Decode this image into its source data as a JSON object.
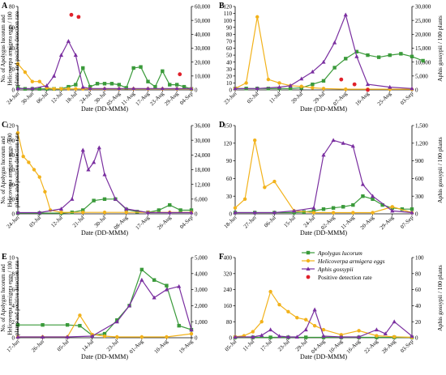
{
  "figure": {
    "left_axis_label": [
      "No. of Apolygus lucorum and",
      "Helicoverpa armigera eggs / 100",
      "plants and positive detection rate"
    ],
    "right_axis_label": "Aphis gossypii / 100 plants",
    "x_axis_label": "Date (DD-MMM)",
    "legend": [
      {
        "name": "Apolygus lucorum",
        "color": "#3a9a3a",
        "marker": "square"
      },
      {
        "name": "Helicoverpa armigera eggs",
        "color": "#f2b21b",
        "marker": "circle"
      },
      {
        "name": "Aphis gossypii",
        "color": "#7a2fa0",
        "marker": "triangle"
      },
      {
        "name": "Positive detection rate",
        "color": "#e0202a",
        "marker": "dot"
      }
    ],
    "colors": {
      "apolygus": "#3a9a3a",
      "helicoverpa": "#f2b21b",
      "aphis": "#7a2fa0",
      "detection": "#e0202a"
    }
  },
  "chart_data": [
    {
      "panel": "A",
      "type": "line",
      "x": [
        "24-Jun",
        "30-Jun",
        "06-Jul",
        "12-Jul",
        "18-Jul",
        "24-Jul",
        "30-Jul",
        "05-Aug",
        "11-Aug",
        "17-Aug",
        "23-Aug",
        "29-Aug",
        "04-Sep"
      ],
      "ylim_left": [
        0,
        80
      ],
      "yticks_left": [
        0,
        20,
        40,
        60,
        80
      ],
      "ylim_right": [
        0,
        60000
      ],
      "yticks_right": [
        0,
        10000,
        20000,
        30000,
        40000,
        50000,
        60000
      ],
      "series": [
        {
          "name": "Apolygus lucorum",
          "axis": "left",
          "x": [
            0,
            0.5,
            1,
            1.5,
            2,
            2.5,
            3,
            3.5,
            4,
            4.5,
            5,
            5.5,
            6,
            6.5,
            7,
            7.5,
            8,
            8.5,
            9,
            9.5,
            10,
            10.5,
            11,
            11.5,
            12
          ],
          "values": [
            2,
            1,
            1,
            1,
            1,
            1,
            1,
            3,
            5,
            21,
            3,
            6,
            6,
            6,
            5,
            2,
            21,
            22,
            8,
            3,
            18,
            5,
            5,
            3,
            1
          ]
        },
        {
          "name": "Helicoverpa armigera eggs",
          "axis": "left",
          "x": [
            0,
            0.5,
            1,
            1.5,
            2,
            2.5,
            3,
            3.5,
            4,
            4.5,
            5,
            6,
            7,
            8,
            9,
            10,
            11,
            12
          ],
          "values": [
            25,
            17,
            8,
            8,
            2,
            1,
            1,
            1,
            1,
            1,
            1,
            1,
            1,
            1,
            1,
            1,
            1,
            1
          ]
        },
        {
          "name": "Aphis gossypii",
          "axis": "right",
          "x": [
            0,
            1,
            2,
            2.5,
            3,
            3.5,
            4,
            4.5,
            5,
            6,
            7,
            8,
            9,
            10,
            11,
            12
          ],
          "values": [
            1000,
            1000,
            3000,
            10000,
            25000,
            35000,
            25000,
            2000,
            1000,
            1000,
            1000,
            1000,
            1000,
            1000,
            1000,
            1000
          ]
        },
        {
          "name": "Positive detection rate",
          "axis": "left",
          "x": [
            3.7,
            4.2,
            11.2
          ],
          "values": [
            72,
            70,
            15
          ]
        }
      ]
    },
    {
      "panel": "B",
      "type": "line",
      "x": [
        "23-Jun",
        "02-Jul",
        "11-Jul",
        "20-Jul",
        "29-Jul",
        "07-Aug",
        "16-Aug",
        "25-Aug",
        "03-Sep"
      ],
      "ylim_left": [
        0,
        120
      ],
      "yticks_left": [
        0,
        10,
        20,
        30,
        40,
        50,
        60,
        70,
        80,
        90,
        100,
        110,
        120
      ],
      "ylim_right": [
        0,
        30000
      ],
      "yticks_right": [
        0,
        5000,
        10000,
        15000,
        20000,
        25000,
        30000
      ],
      "series": [
        {
          "name": "Apolygus lucorum",
          "axis": "left",
          "x": [
            0,
            0.5,
            1,
            1.5,
            2,
            2.5,
            3,
            3.5,
            4,
            4.5,
            5,
            5.5,
            6,
            6.5,
            7,
            7.5,
            8,
            8.5
          ],
          "values": [
            2,
            2,
            2,
            2,
            2,
            2,
            3,
            8,
            13,
            32,
            45,
            55,
            50,
            47,
            50,
            52,
            48,
            42
          ]
        },
        {
          "name": "Helicoverpa armigera eggs",
          "axis": "left",
          "x": [
            0,
            0.5,
            1,
            1.5,
            2,
            2.5,
            3,
            3.5,
            4,
            5,
            6,
            7,
            8
          ],
          "values": [
            2,
            10,
            105,
            15,
            10,
            6,
            5,
            3,
            2,
            1,
            1,
            1,
            1
          ]
        },
        {
          "name": "Aphis gossypii",
          "axis": "right",
          "x": [
            0,
            1,
            2,
            2.5,
            3,
            3.5,
            4,
            4.5,
            5,
            5.5,
            6,
            7,
            8
          ],
          "values": [
            500,
            500,
            1000,
            1500,
            4000,
            6500,
            10000,
            17000,
            27000,
            12000,
            2000,
            1000,
            500
          ]
        },
        {
          "name": "Positive detection rate",
          "axis": "left",
          "x": [
            4.8,
            5.4,
            6.0
          ],
          "values": [
            15,
            8,
            0
          ]
        }
      ]
    },
    {
      "panel": "C",
      "type": "line",
      "x": [
        "24-Jun",
        "03-Jul",
        "12-Jul",
        "21-Jul",
        "30-Jul",
        "08-Aug",
        "17-Aug",
        "26-Aug",
        "04-Sep"
      ],
      "ylim_left": [
        0,
        120
      ],
      "yticks_left": [
        0,
        20,
        40,
        60,
        80,
        100,
        120
      ],
      "ylim_right": [
        0,
        36000
      ],
      "yticks_right": [
        0,
        6000,
        12000,
        18000,
        24000,
        30000,
        36000
      ],
      "series": [
        {
          "name": "Apolygus lucorum",
          "axis": "left",
          "x": [
            0,
            1,
            2,
            2.5,
            3,
            3.5,
            4,
            4.5,
            5,
            5.5,
            6,
            6.5,
            7,
            7.5,
            8
          ],
          "values": [
            1,
            1,
            1,
            2,
            5,
            18,
            20,
            20,
            6,
            3,
            2,
            5,
            12,
            5,
            5
          ]
        },
        {
          "name": "Helicoverpa armigera eggs",
          "axis": "left",
          "x": [
            0,
            0.25,
            0.5,
            0.75,
            1,
            1.25,
            1.5,
            2,
            3,
            4,
            5,
            6,
            7,
            8
          ],
          "values": [
            110,
            78,
            70,
            60,
            50,
            30,
            5,
            2,
            2,
            2,
            2,
            2,
            2,
            2
          ]
        },
        {
          "name": "Aphis gossypii",
          "axis": "right",
          "x": [
            0,
            1,
            2,
            2.5,
            3,
            3.25,
            3.5,
            3.75,
            4,
            4.5,
            5,
            6,
            7,
            8
          ],
          "values": [
            500,
            500,
            2000,
            6000,
            26000,
            18000,
            21000,
            27000,
            16000,
            6000,
            2000,
            500,
            500,
            500
          ]
        }
      ]
    },
    {
      "panel": "D",
      "type": "line",
      "x": [
        "18-Jun",
        "27-Jun",
        "06-Jul",
        "15-Jul",
        "24-Jul",
        "02-Aug",
        "11-Aug",
        "20-Aug",
        "29-Aug",
        "07-Sep"
      ],
      "ylim_left": [
        0,
        150
      ],
      "yticks_left": [
        0,
        30,
        60,
        90,
        120,
        150
      ],
      "ylim_right": [
        0,
        1500
      ],
      "yticks_right": [
        0,
        300,
        600,
        900,
        1200,
        1500
      ],
      "series": [
        {
          "name": "Apolygus lucorum",
          "axis": "left",
          "x": [
            0,
            1,
            2,
            3,
            3.5,
            4,
            4.5,
            5,
            5.5,
            6,
            6.5,
            7,
            7.5,
            8,
            8.5,
            9
          ],
          "values": [
            2,
            2,
            2,
            2,
            3,
            5,
            8,
            10,
            12,
            15,
            30,
            25,
            15,
            10,
            8,
            8
          ]
        },
        {
          "name": "Helicoverpa armigera eggs",
          "axis": "left",
          "x": [
            0,
            0.5,
            1,
            1.5,
            2,
            3,
            4,
            5,
            6,
            7,
            8,
            9
          ],
          "values": [
            10,
            25,
            125,
            45,
            55,
            5,
            2,
            2,
            2,
            2,
            12,
            2
          ]
        },
        {
          "name": "Aphis gossypii",
          "axis": "right",
          "x": [
            0,
            1,
            2,
            3,
            4,
            4.5,
            5,
            5.5,
            6,
            6.5,
            7,
            8,
            9
          ],
          "values": [
            20,
            20,
            20,
            50,
            100,
            1000,
            1250,
            1200,
            1150,
            500,
            300,
            50,
            20
          ]
        }
      ]
    },
    {
      "panel": "E",
      "type": "line",
      "x": [
        "17-Jun",
        "26-Jun",
        "05-Jul",
        "14-Jul",
        "23-Jul",
        "01-Aug",
        "10-Aug",
        "19-Aug"
      ],
      "ylim_left": [
        0,
        10
      ],
      "yticks_left": [
        0,
        2,
        4,
        6,
        8,
        10
      ],
      "ylim_right": [
        0,
        5000
      ],
      "yticks_right": [
        0,
        1000,
        2000,
        3000,
        4000,
        5000
      ],
      "series": [
        {
          "name": "Apolygus lucorum",
          "axis": "left",
          "x": [
            0,
            1,
            2,
            2.5,
            3,
            3.5,
            4,
            4.5,
            5,
            5.5,
            6,
            6.5,
            7
          ],
          "values": [
            1.6,
            1.6,
            1.6,
            1.5,
            0.3,
            0.5,
            2.2,
            4,
            8.5,
            7.2,
            6.5,
            1.5,
            1
          ]
        },
        {
          "name": "Helicoverpa armigera eggs",
          "axis": "left",
          "x": [
            0,
            1,
            2,
            2.5,
            3,
            3.5,
            4,
            5,
            6,
            7
          ],
          "values": [
            0.1,
            0.1,
            0.1,
            2.8,
            0.4,
            0.2,
            0.1,
            0.1,
            0.1,
            0.5
          ]
        },
        {
          "name": "Aphis gossypii",
          "axis": "right",
          "x": [
            0,
            1,
            2,
            3,
            4,
            4.5,
            5,
            5.5,
            6,
            6.5,
            7
          ],
          "values": [
            50,
            50,
            50,
            100,
            1000,
            2000,
            3600,
            2500,
            3000,
            3200,
            500
          ]
        }
      ]
    },
    {
      "panel": "F",
      "type": "line",
      "x": [
        "05-Jul",
        "11-Jul",
        "17-Jul",
        "23-Jul",
        "29-Jul",
        "04-Aug",
        "10-Aug",
        "16-Aug",
        "22-Aug",
        "28-Aug",
        "03-Sep"
      ],
      "ylim_left": [
        0,
        400
      ],
      "yticks_left": [
        0,
        80,
        160,
        240,
        320,
        400
      ],
      "ylim_right": [
        0,
        100
      ],
      "yticks_right": [
        0,
        20,
        40,
        60,
        80,
        100
      ],
      "series": [
        {
          "name": "Apolygus lucorum",
          "axis": "left",
          "x": [
            0,
            1,
            2,
            3,
            4,
            5,
            6,
            7,
            8,
            9,
            10
          ],
          "values": [
            2,
            2,
            2,
            2,
            2,
            2,
            2,
            2,
            2,
            2,
            2
          ]
        },
        {
          "name": "Helicoverpa armigera eggs",
          "axis": "left",
          "x": [
            0,
            0.5,
            1,
            1.5,
            2,
            2.5,
            3,
            3.5,
            4,
            4.5,
            5,
            6,
            7,
            8,
            9,
            10
          ],
          "values": [
            5,
            10,
            30,
            80,
            230,
            165,
            130,
            100,
            90,
            60,
            40,
            15,
            35,
            10,
            5,
            2
          ]
        },
        {
          "name": "Aphis gossypii",
          "axis": "right",
          "x": [
            0,
            1,
            1.5,
            2,
            2.5,
            3,
            3.5,
            4,
            4.5,
            5,
            6,
            7,
            8,
            8.5,
            9,
            10
          ],
          "values": [
            1,
            1,
            3,
            10,
            2,
            1,
            1,
            10,
            35,
            2,
            1,
            1,
            10,
            5,
            20,
            2
          ]
        }
      ]
    }
  ]
}
